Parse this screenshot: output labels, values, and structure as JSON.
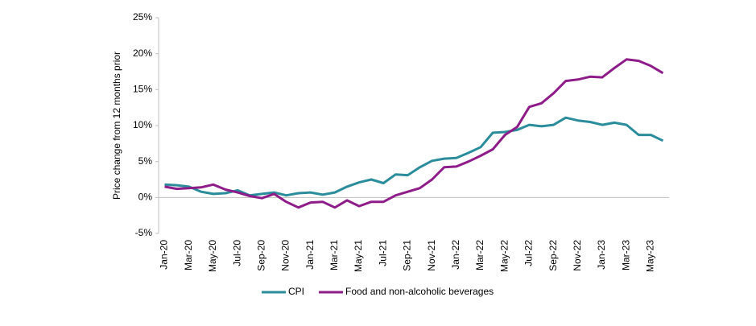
{
  "chart_data": {
    "type": "line",
    "y_label": "Price change from 12 months prior",
    "categories": [
      "Jan-20",
      null,
      "Mar-20",
      null,
      "May-20",
      null,
      "Jul-20",
      null,
      "Sep-20",
      null,
      "Nov-20",
      null,
      "Jan-21",
      null,
      "Mar-21",
      null,
      "May-21",
      null,
      "Jul-21",
      null,
      "Sep-21",
      null,
      "Nov-21",
      null,
      "Jan-22",
      null,
      "Mar-22",
      null,
      "May-22",
      null,
      "Jul-22",
      null,
      "Sep-22",
      null,
      "Nov-22",
      null,
      "Jan-23",
      null,
      "Mar-23",
      null,
      "May-23",
      null
    ],
    "series": [
      {
        "name": "CPI",
        "color": "#2b8c9b",
        "values": [
          1.8,
          1.7,
          1.5,
          0.8,
          0.5,
          0.6,
          1.0,
          0.3,
          0.5,
          0.7,
          0.3,
          0.6,
          0.7,
          0.4,
          0.7,
          1.5,
          2.1,
          2.5,
          2.0,
          3.2,
          3.1,
          4.2,
          5.1,
          5.4,
          5.5,
          6.2,
          7.0,
          9.0,
          9.1,
          9.4,
          10.1,
          9.9,
          10.1,
          11.1,
          10.7,
          10.5,
          10.1,
          10.4,
          10.1,
          8.7,
          8.7,
          7.9
        ]
      },
      {
        "name": "Food and non-alcoholic beverages",
        "color": "#8e1d8a",
        "values": [
          1.5,
          1.2,
          1.3,
          1.4,
          1.8,
          1.1,
          0.7,
          0.2,
          -0.1,
          0.5,
          -0.6,
          -1.4,
          -0.7,
          -0.6,
          -1.4,
          -0.4,
          -1.2,
          -0.6,
          -0.6,
          0.3,
          0.8,
          1.3,
          2.5,
          4.2,
          4.3,
          5.0,
          5.8,
          6.7,
          8.7,
          9.8,
          12.6,
          13.1,
          14.5,
          16.2,
          16.4,
          16.8,
          16.7,
          18.0,
          19.2,
          19.0,
          18.3,
          17.3
        ]
      }
    ],
    "ylim": [
      -5,
      25
    ],
    "yticks": [
      {
        "value": -5,
        "label": "-5%"
      },
      {
        "value": 0,
        "label": "0%"
      },
      {
        "value": 5,
        "label": "5%"
      },
      {
        "value": 10,
        "label": "10%"
      },
      {
        "value": 15,
        "label": "15%"
      },
      {
        "value": 20,
        "label": "20%"
      },
      {
        "value": 25,
        "label": "25%"
      }
    ],
    "grid": false,
    "legend": "bottom"
  }
}
